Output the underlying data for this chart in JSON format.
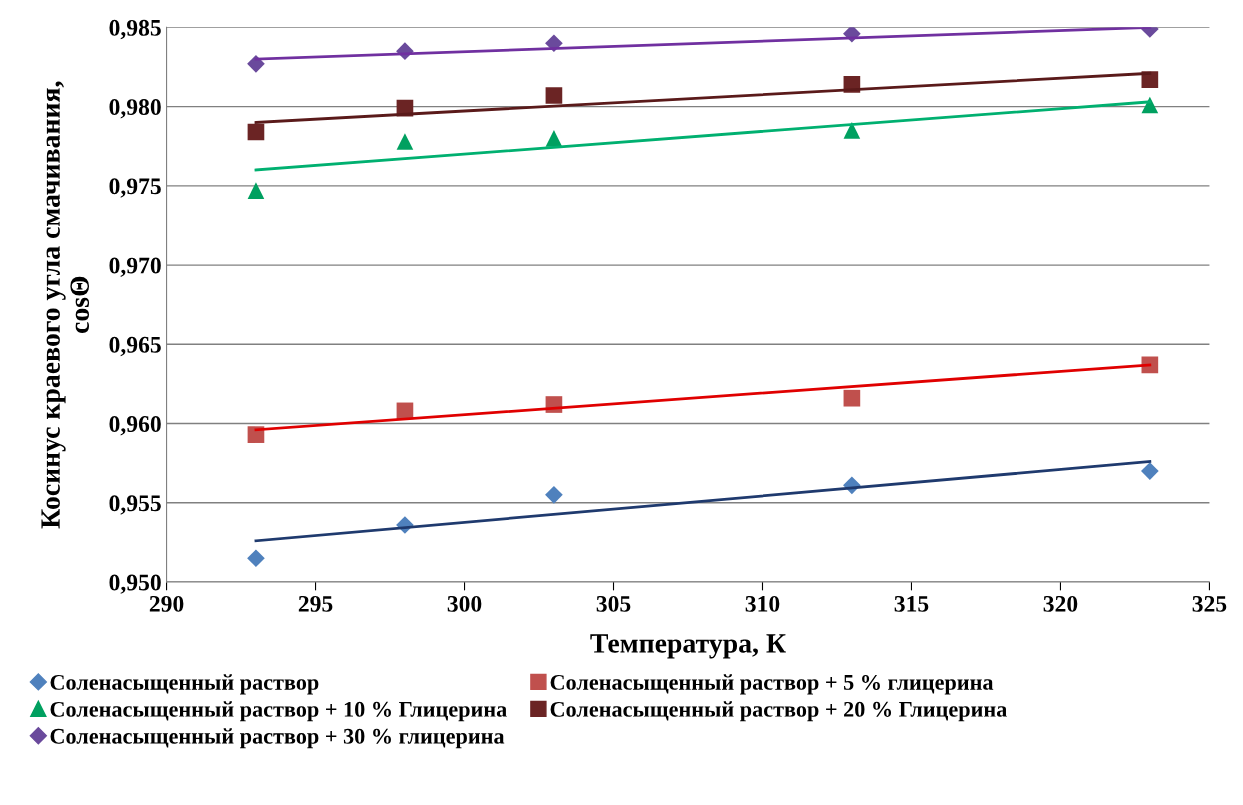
{
  "chart_data": {
    "type": "scatter",
    "xlabel": "Температура, К",
    "ylabel": "Косинус краевого угла смачивания,\ncosΘ",
    "xlim": [
      290,
      325
    ],
    "xticks": [
      290,
      295,
      300,
      305,
      310,
      315,
      320,
      325
    ],
    "ylim": [
      0.95,
      0.985
    ],
    "yticks": [
      {
        "value": 0.95,
        "label": "0,950"
      },
      {
        "value": 0.955,
        "label": "0,955"
      },
      {
        "value": 0.96,
        "label": "0,960"
      },
      {
        "value": 0.965,
        "label": "0,965"
      },
      {
        "value": 0.97,
        "label": "0,970"
      },
      {
        "value": 0.975,
        "label": "0,975"
      },
      {
        "value": 0.98,
        "label": "0,980"
      },
      {
        "value": 0.985,
        "label": "0,985"
      }
    ],
    "grid": "y",
    "legend": "bottom",
    "series": [
      {
        "name": "Соленасыщенный раствор",
        "color": "#4f81bd",
        "marker": "diamond",
        "x": [
          293,
          298,
          303,
          313,
          323
        ],
        "values": [
          0.9515,
          0.9536,
          0.9555,
          0.9561,
          0.957
        ]
      },
      {
        "name": "Соленасыщенный раствор + 5 % глицерина",
        "color": "#c0504d",
        "marker": "square",
        "x": [
          293,
          298,
          303,
          313,
          323
        ],
        "values": [
          0.9593,
          0.9608,
          0.9612,
          0.9616,
          0.9637
        ]
      },
      {
        "name": "Соленасыщенный раствор + 10 % Глицерина",
        "color": "#00a060",
        "marker": "triangle",
        "x": [
          293,
          298,
          303,
          313,
          323
        ],
        "values": [
          0.9747,
          0.9778,
          0.978,
          0.9785,
          0.9801
        ]
      },
      {
        "name": "Соленасыщенный раствор + 20 % Глицерина",
        "color": "#6b2424",
        "marker": "square",
        "x": [
          293,
          298,
          303,
          313,
          323
        ],
        "values": [
          0.9784,
          0.9799,
          0.9807,
          0.9814,
          0.9817
        ]
      },
      {
        "name": "Соленасыщенный раствор + 30 % глицерина",
        "color": "#6a4a9c",
        "marker": "diamond",
        "x": [
          293,
          298,
          303,
          313,
          323
        ],
        "values": [
          0.9827,
          0.9835,
          0.984,
          0.9846,
          0.9849
        ]
      },
      {
        "type": "line",
        "color": "#1f3a6e",
        "x": [
          293,
          323
        ],
        "values": [
          0.9526,
          0.9576
        ]
      },
      {
        "type": "line",
        "color": "#e00000",
        "x": [
          293,
          323
        ],
        "values": [
          0.9596,
          0.9637
        ]
      },
      {
        "type": "line",
        "color": "#00b070",
        "x": [
          293,
          323
        ],
        "values": [
          0.976,
          0.9803
        ]
      },
      {
        "type": "line",
        "color": "#5a1a1a",
        "x": [
          293,
          323
        ],
        "values": [
          0.979,
          0.9821
        ]
      },
      {
        "type": "line",
        "color": "#7030a0",
        "x": [
          293,
          323
        ],
        "values": [
          0.983,
          0.985
        ]
      }
    ]
  }
}
